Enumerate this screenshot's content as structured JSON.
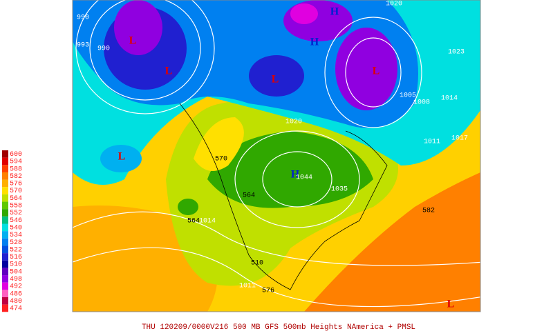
{
  "legend": {
    "items": [
      {
        "label": "600",
        "color": "#a00000"
      },
      {
        "label": "594",
        "color": "#e00000"
      },
      {
        "label": "588",
        "color": "#ff4000"
      },
      {
        "label": "582",
        "color": "#ff8000"
      },
      {
        "label": "576",
        "color": "#ffb000"
      },
      {
        "label": "570",
        "color": "#ffe000"
      },
      {
        "label": "564",
        "color": "#c0e000"
      },
      {
        "label": "558",
        "color": "#60c800"
      },
      {
        "label": "552",
        "color": "#30a800"
      },
      {
        "label": "546",
        "color": "#00c080"
      },
      {
        "label": "540",
        "color": "#00e0e0"
      },
      {
        "label": "534",
        "color": "#00b0f0"
      },
      {
        "label": "528",
        "color": "#0080f0"
      },
      {
        "label": "522",
        "color": "#0050e0"
      },
      {
        "label": "516",
        "color": "#2020d0"
      },
      {
        "label": "510",
        "color": "#0000a0"
      },
      {
        "label": "504",
        "color": "#6000c0"
      },
      {
        "label": "498",
        "color": "#9000e0"
      },
      {
        "label": "492",
        "color": "#e000e0"
      },
      {
        "label": "486",
        "color": "#ff60c0"
      },
      {
        "label": "480",
        "color": "#c00040"
      },
      {
        "label": "474",
        "color": "#ff2020"
      }
    ]
  },
  "map": {
    "labels": [
      "990",
      "990",
      "993",
      "1020",
      "1023",
      "1014",
      "1011",
      "1017",
      "1008",
      "1005",
      "L",
      "L",
      "L",
      "L",
      "L",
      "H",
      "H",
      "H",
      "570",
      "564",
      "564",
      "1014",
      "582",
      "576",
      "510",
      "1011",
      "1020",
      "1035",
      "1044",
      "L"
    ]
  },
  "caption": "THU 120209/0000V216   500 MB GFS 500mb Heights NAmerica + PMSL"
}
